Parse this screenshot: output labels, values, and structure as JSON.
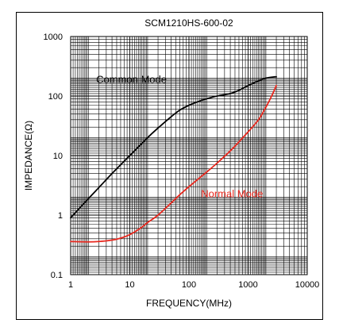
{
  "chart_data": {
    "type": "line",
    "title": "SCM1210HS-600-02",
    "xlabel": "FREQUENCY(MHz)",
    "ylabel": "IMPEDANCE(Ω)",
    "x_scale": "log",
    "y_scale": "log",
    "xlim": [
      1,
      10000
    ],
    "ylim": [
      0.1,
      1000
    ],
    "x_ticks": [
      {
        "value": 1,
        "label": "1"
      },
      {
        "value": 10,
        "label": "10"
      },
      {
        "value": 100,
        "label": "100"
      },
      {
        "value": 1000,
        "label": "1000"
      },
      {
        "value": 10000,
        "label": "10000"
      }
    ],
    "y_ticks": [
      {
        "value": 0.1,
        "label": "0.1"
      },
      {
        "value": 1,
        "label": "1"
      },
      {
        "value": 10,
        "label": "10"
      },
      {
        "value": 100,
        "label": "100"
      },
      {
        "value": 1000,
        "label": "1000"
      }
    ],
    "grid": true,
    "series": [
      {
        "name": "Common Mode",
        "color": "#000000",
        "label_at": {
          "x": 2.7,
          "y": 165
        },
        "points": [
          {
            "x": 1,
            "y": 0.9
          },
          {
            "x": 2,
            "y": 1.9
          },
          {
            "x": 3,
            "y": 2.9
          },
          {
            "x": 5,
            "y": 5.0
          },
          {
            "x": 10,
            "y": 10
          },
          {
            "x": 20,
            "y": 20
          },
          {
            "x": 30,
            "y": 29
          },
          {
            "x": 50,
            "y": 45
          },
          {
            "x": 70,
            "y": 58
          },
          {
            "x": 100,
            "y": 70
          },
          {
            "x": 150,
            "y": 82
          },
          {
            "x": 200,
            "y": 90
          },
          {
            "x": 300,
            "y": 100
          },
          {
            "x": 500,
            "y": 110
          },
          {
            "x": 700,
            "y": 125
          },
          {
            "x": 1000,
            "y": 150
          },
          {
            "x": 1500,
            "y": 180
          },
          {
            "x": 2000,
            "y": 200
          },
          {
            "x": 2800,
            "y": 210
          },
          {
            "x": 3000,
            "y": 210
          }
        ]
      },
      {
        "name": "Normal Mode",
        "color": "#e8281e",
        "label_at": {
          "x": 160,
          "y": 2.0
        },
        "points": [
          {
            "x": 1,
            "y": 0.36
          },
          {
            "x": 2,
            "y": 0.355
          },
          {
            "x": 3,
            "y": 0.36
          },
          {
            "x": 5,
            "y": 0.38
          },
          {
            "x": 7,
            "y": 0.41
          },
          {
            "x": 10,
            "y": 0.47
          },
          {
            "x": 15,
            "y": 0.6
          },
          {
            "x": 20,
            "y": 0.75
          },
          {
            "x": 30,
            "y": 1.0
          },
          {
            "x": 50,
            "y": 1.6
          },
          {
            "x": 70,
            "y": 2.2
          },
          {
            "x": 100,
            "y": 3.0
          },
          {
            "x": 150,
            "y": 4.2
          },
          {
            "x": 200,
            "y": 5.3
          },
          {
            "x": 300,
            "y": 7.5
          },
          {
            "x": 500,
            "y": 12
          },
          {
            "x": 700,
            "y": 17
          },
          {
            "x": 1000,
            "y": 25
          },
          {
            "x": 1500,
            "y": 40
          },
          {
            "x": 2000,
            "y": 65
          },
          {
            "x": 2500,
            "y": 100
          },
          {
            "x": 3000,
            "y": 150
          }
        ]
      }
    ]
  }
}
